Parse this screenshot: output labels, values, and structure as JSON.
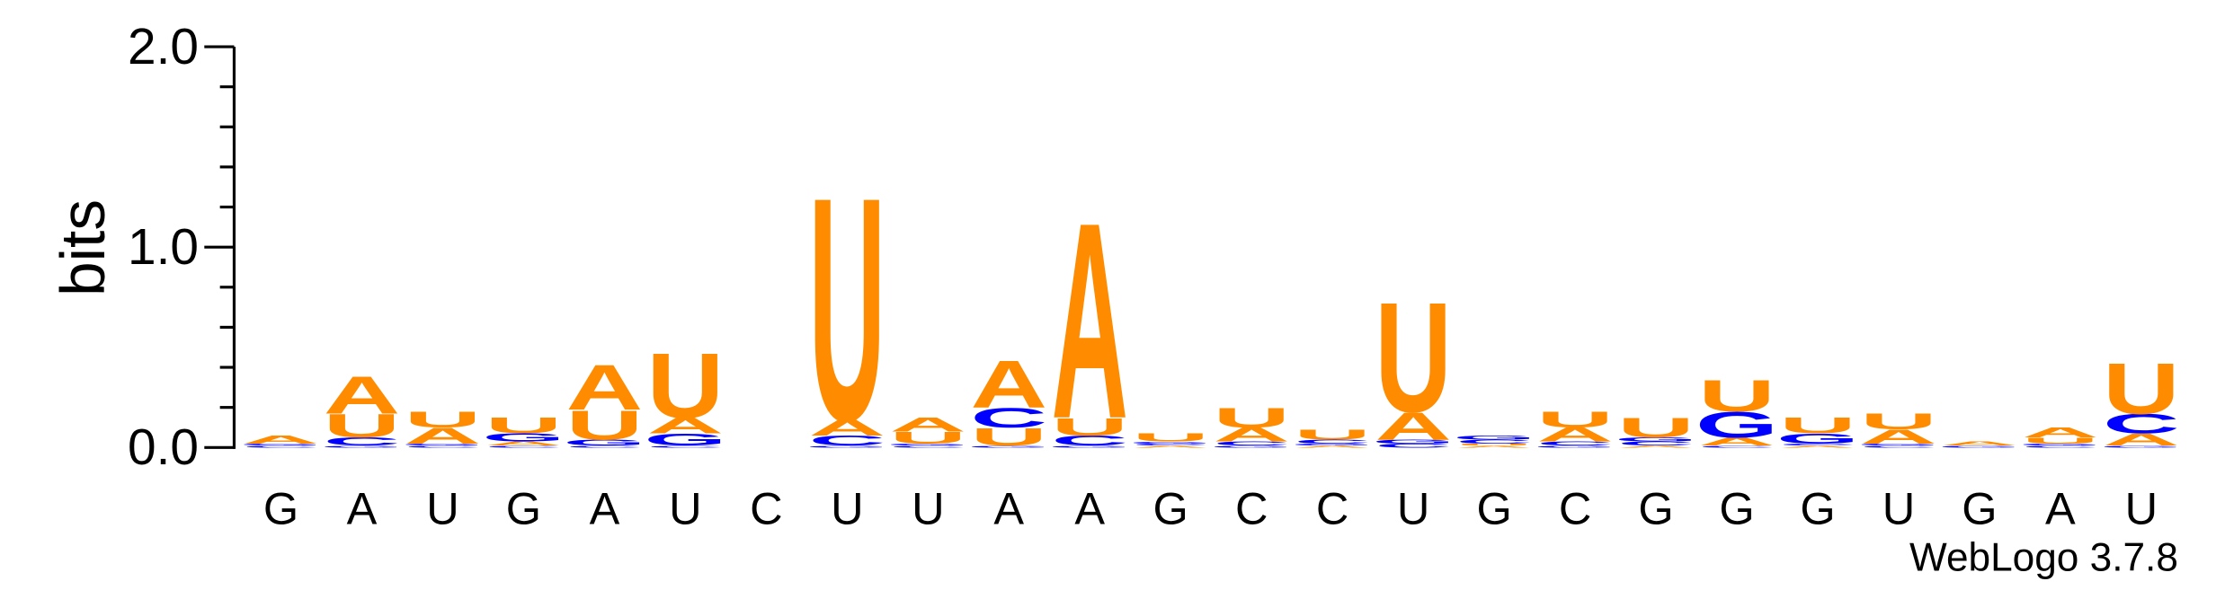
{
  "chart_data": {
    "type": "sequence_logo",
    "ylabel": "bits",
    "credit": "WebLogo 3.7.8",
    "categories": [
      "G",
      "A",
      "U",
      "G",
      "A",
      "U",
      "C",
      "U",
      "U",
      "A",
      "A",
      "G",
      "C",
      "C",
      "U",
      "G",
      "C",
      "G",
      "G",
      "G",
      "U",
      "G",
      "A",
      "U"
    ],
    "series": [
      {
        "name": "A",
        "color": "#ff8c00",
        "values": [
          0.04,
          0.19,
          0.08,
          0.02,
          0.23,
          0.08,
          0,
          0.08,
          0.07,
          0.24,
          1.0,
          0.01,
          0.07,
          0.01,
          0.14,
          0.01,
          0.07,
          0.01,
          0.04,
          0.01,
          0.07,
          0.02,
          0.05,
          0.06
        ]
      },
      {
        "name": "C",
        "color": "#0000ff",
        "values": [
          0.01,
          0.04,
          0.01,
          0.01,
          0.01,
          0.01,
          0,
          0.05,
          0.01,
          0.1,
          0.05,
          0.01,
          0.02,
          0.02,
          0.02,
          0.02,
          0.02,
          0.02,
          0.01,
          0.01,
          0.01,
          0,
          0.01,
          0.1
        ]
      },
      {
        "name": "G",
        "color": "#0000ff",
        "values": [
          0.01,
          0.01,
          0.01,
          0.04,
          0.03,
          0.06,
          0,
          0.01,
          0.01,
          0.01,
          0.01,
          0.01,
          0.01,
          0.01,
          0.02,
          0.02,
          0.01,
          0.02,
          0.13,
          0.05,
          0.01,
          0.01,
          0.01,
          0.01
        ]
      },
      {
        "name": "U",
        "color": "#ff8c00",
        "values": [
          0,
          0.12,
          0.08,
          0.08,
          0.15,
          0.33,
          0,
          1.14,
          0.06,
          0.09,
          0.09,
          0.04,
          0.1,
          0.05,
          0.56,
          0.01,
          0.08,
          0.1,
          0.16,
          0.08,
          0.08,
          0,
          0.03,
          0.26
        ]
      }
    ],
    "ylim": [
      0,
      2
    ],
    "yticks": [
      {
        "value": 0,
        "label": "0.0"
      },
      {
        "value": 1,
        "label": "1.0"
      },
      {
        "value": 2,
        "label": "2.0"
      }
    ],
    "yminor": [
      0.2,
      0.4,
      0.6,
      0.8,
      1.2,
      1.4,
      1.6,
      1.8
    ]
  }
}
